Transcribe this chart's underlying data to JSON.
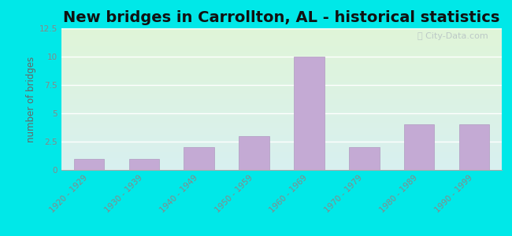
{
  "title": "New bridges in Carrollton, AL - historical statistics",
  "categories": [
    "1920 - 1929",
    "1930 - 1939",
    "1940 - 1949",
    "1950 - 1959",
    "1960 - 1969",
    "1970 - 1979",
    "1980 - 1989",
    "1990 - 1999"
  ],
  "values": [
    1,
    1,
    2,
    3,
    10,
    2,
    4,
    4
  ],
  "ylabel": "number of bridges",
  "ylim": [
    0,
    12.5
  ],
  "yticks": [
    0,
    2.5,
    5,
    7.5,
    10,
    12.5
  ],
  "bar_color": "#c4aad4",
  "bar_edge_color": "#b09ac0",
  "background_outer": "#00e8e8",
  "background_inner_top": "#e0f5d8",
  "background_inner_bottom": "#d8f0f0",
  "grid_color": "#ffffff",
  "title_fontsize": 14,
  "axis_label_fontsize": 8.5,
  "tick_label_fontsize": 7.5,
  "watermark_text": "City-Data.com",
  "watermark_color": "#b8c4c4",
  "tick_color": "#888888",
  "ylabel_color": "#666666"
}
